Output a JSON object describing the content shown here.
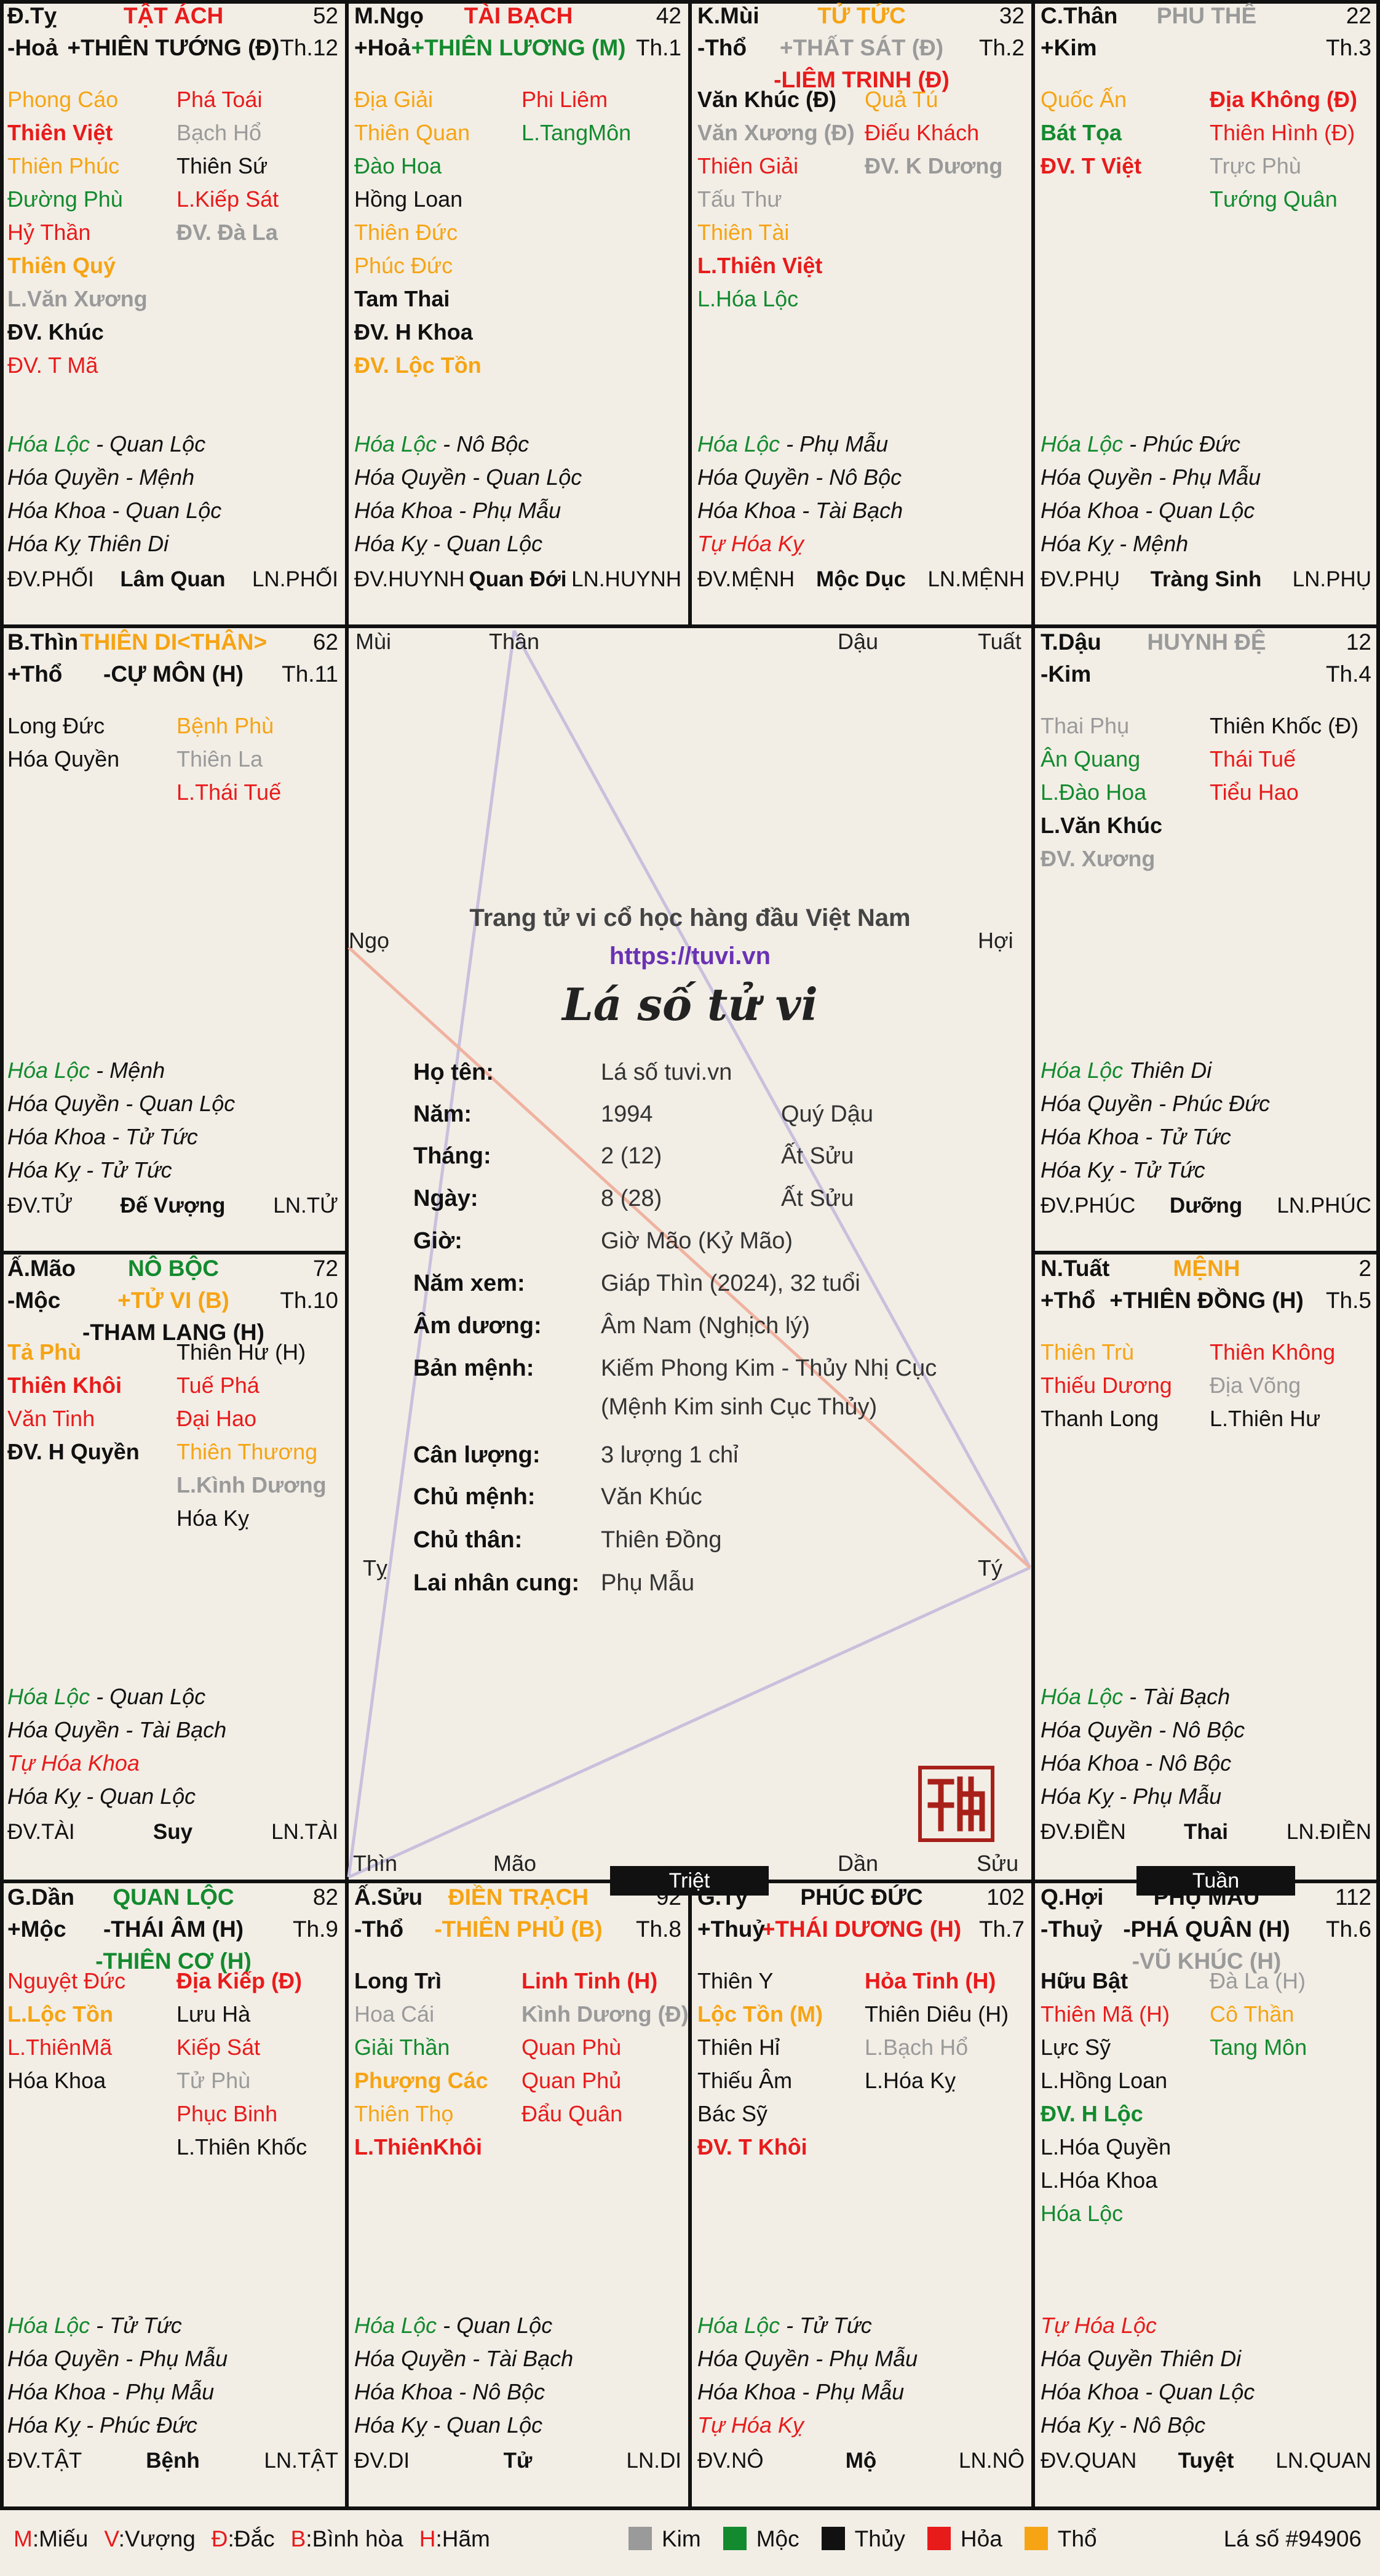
{
  "colors": {
    "moc": "#138a2e",
    "hoa": "#e81b1b",
    "tho": "#f6a414",
    "kim": "#9a9a9a",
    "thuy": "#111111",
    "purple": "#6a32b4"
  },
  "palaces": [
    {
      "id": "dty",
      "hdr": {
        "tl": "Đ.Tỵ",
        "tc": "TẬT ÁCH",
        "tc_c": "hoa",
        "tr": "52",
        "bl": "-Hoả",
        "bc": "+THIÊN TƯỚNG (Đ)",
        "bc_c": "thuy",
        "br": "Th.12"
      },
      "left": [
        [
          "Phong Cáo",
          "tho",
          0
        ],
        [
          "Thiên Việt",
          "hoa",
          1
        ],
        [
          "Thiên Phúc",
          "tho",
          0
        ],
        [
          "Đường Phù",
          "moc",
          0
        ],
        [
          "Hỷ Thần",
          "hoa",
          0
        ],
        [
          "Thiên Quý",
          "tho",
          1
        ],
        [
          "L.Văn Xương",
          "kim",
          1
        ],
        [
          "ĐV. Khúc",
          "thuy",
          1
        ],
        [
          "ĐV. T Mã",
          "hoa",
          0
        ]
      ],
      "right": [
        [
          "Phá Toái",
          "hoa",
          0
        ],
        [
          "Bạch Hổ",
          "kim",
          0
        ],
        [
          "Thiên Sứ",
          "thuy",
          0
        ],
        [
          "L.Kiếp Sát",
          "hoa",
          0
        ],
        [
          "ĐV. Đà La",
          "kim",
          1
        ]
      ],
      "hoa": [
        [
          "Hóa Lộc",
          "moc",
          " - Quan Lộc"
        ],
        [
          "Hóa Quyền",
          "thuy",
          " - Mệnh"
        ],
        [
          "Hóa Khoa",
          "thuy",
          " - Quan Lộc"
        ],
        [
          "Hóa Kỵ",
          "thuy",
          "  Thiên Di"
        ]
      ],
      "foot": {
        "l": "ĐV.PHỐI",
        "c": "Lâm Quan",
        "r": "LN.PHỐI"
      }
    },
    {
      "id": "mngo",
      "hdr": {
        "tl": "M.Ngọ",
        "tc": "TÀI BẠCH",
        "tc_c": "hoa",
        "tr": "42",
        "bl": "+Hoả",
        "bc": "+THIÊN LƯƠNG (M)",
        "bc_c": "moc",
        "br": "Th.1"
      },
      "left": [
        [
          "Địa Giải",
          "tho",
          0
        ],
        [
          "Thiên Quan",
          "tho",
          0
        ],
        [
          "Đào Hoa",
          "moc",
          0
        ],
        [
          "Hồng Loan",
          "thuy",
          0
        ],
        [
          "Thiên Đức",
          "tho",
          0
        ],
        [
          "Phúc Đức",
          "tho",
          0
        ],
        [
          "Tam Thai",
          "thuy",
          1
        ],
        [
          "ĐV. H Khoa",
          "thuy",
          1
        ],
        [
          "ĐV. Lộc Tồn",
          "tho",
          1
        ]
      ],
      "right": [
        [
          "Phi Liêm",
          "hoa",
          0
        ],
        [
          "L.TangMôn",
          "moc",
          0
        ]
      ],
      "hoa": [
        [
          "Hóa Lộc",
          "moc",
          " - Nô Bộc"
        ],
        [
          "Hóa Quyền",
          "thuy",
          " - Quan Lộc"
        ],
        [
          "Hóa Khoa",
          "thuy",
          " - Phụ Mẫu"
        ],
        [
          "Hóa Kỵ",
          "thuy",
          " - Quan Lộc"
        ]
      ],
      "foot": {
        "l": "ĐV.HUYNH",
        "c": "Quan Đới",
        "r": "LN.HUYNH"
      }
    },
    {
      "id": "kmui",
      "hdr": {
        "tl": "K.Mùi",
        "tc": "TỬ TỨC",
        "tc_c": "tho",
        "tr": "32",
        "bl": "-Thổ",
        "bc": "+THẤT SÁT (Đ)",
        "bc_c": "kim",
        "br": "Th.2",
        "c3": "-LIÊM TRINH (Đ)",
        "c3_c": "hoa"
      },
      "left": [
        [
          "Văn Khúc (Đ)",
          "thuy",
          1
        ],
        [
          "Văn Xương (Đ)",
          "kim",
          1
        ],
        [
          "Thiên Giải",
          "hoa",
          0
        ],
        [
          "Tấu Thư",
          "kim",
          0
        ],
        [
          "Thiên Tài",
          "tho",
          0
        ],
        [
          "L.Thiên Việt",
          "hoa",
          1
        ],
        [
          "L.Hóa Lộc",
          "moc",
          0
        ]
      ],
      "right": [
        [
          "Quả Tú",
          "tho",
          0
        ],
        [
          "Điếu Khách",
          "hoa",
          0
        ],
        [
          "ĐV. K Dương",
          "kim",
          1
        ]
      ],
      "hoa": [
        [
          "Hóa Lộc",
          "moc",
          " - Phụ Mẫu"
        ],
        [
          "Hóa Quyền",
          "thuy",
          " - Nô Bộc"
        ],
        [
          "Hóa Khoa",
          "thuy",
          " - Tài Bạch"
        ],
        [
          "Tự Hóa Kỵ",
          "hoa",
          ""
        ]
      ],
      "foot": {
        "l": "ĐV.MỆNH",
        "c": "Mộc Dục",
        "r": "LN.MỆNH"
      }
    },
    {
      "id": "cthan",
      "hdr": {
        "tl": "C.Thân",
        "tc": "PHU THÊ",
        "tc_c": "kim",
        "tr": "22",
        "bl": "+Kim",
        "bc": "",
        "bc_c": "thuy",
        "br": "Th.3"
      },
      "left": [
        [
          "Quốc Ấn",
          "tho",
          0
        ],
        [
          "Bát Tọa",
          "moc",
          1
        ],
        [
          "ĐV. T Việt",
          "hoa",
          1
        ]
      ],
      "right": [
        [
          "Địa Không (Đ)",
          "hoa",
          1
        ],
        [
          "Thiên Hình (Đ)",
          "hoa",
          0
        ],
        [
          "Trực Phù",
          "kim",
          0
        ],
        [
          "Tướng Quân",
          "moc",
          0
        ]
      ],
      "hoa": [
        [
          "Hóa Lộc",
          "moc",
          " - Phúc Đức"
        ],
        [
          "Hóa Quyền",
          "thuy",
          " - Phụ Mẫu"
        ],
        [
          "Hóa Khoa",
          "thuy",
          " - Quan Lộc"
        ],
        [
          "Hóa Kỵ",
          "thuy",
          " - Mệnh"
        ]
      ],
      "foot": {
        "l": "ĐV.PHỤ",
        "c": "Tràng Sinh",
        "r": "LN.PHỤ"
      }
    },
    {
      "id": "bthin",
      "hdr": {
        "tl": "B.Thìn",
        "tc": "THIÊN DI<THÂN>",
        "tc_c": "tho",
        "tr": "62",
        "bl": "+Thổ",
        "bc": "-CỰ MÔN (H)",
        "bc_c": "thuy",
        "br": "Th.11"
      },
      "left": [
        [
          "Long Đức",
          "thuy",
          0
        ],
        [
          "Hóa Quyền",
          "thuy",
          0
        ]
      ],
      "right": [
        [
          "Bệnh Phù",
          "tho",
          0
        ],
        [
          "Thiên La",
          "kim",
          0
        ],
        [
          "L.Thái Tuế",
          "hoa",
          0
        ]
      ],
      "hoa": [
        [
          "Hóa Lộc",
          "moc",
          " - Mệnh"
        ],
        [
          "Hóa Quyền",
          "thuy",
          " - Quan Lộc"
        ],
        [
          "Hóa Khoa",
          "thuy",
          " - Tử Tức"
        ],
        [
          "Hóa Kỵ",
          "thuy",
          " - Tử Tức"
        ]
      ],
      "foot": {
        "l": "ĐV.TỬ",
        "c": "Đế Vượng",
        "r": "LN.TỬ"
      }
    },
    {
      "id": "tdau",
      "hdr": {
        "tl": "T.Dậu",
        "tc": "HUYNH ĐỆ",
        "tc_c": "kim",
        "tr": "12",
        "bl": "-Kim",
        "bc": "",
        "bc_c": "thuy",
        "br": "Th.4"
      },
      "left": [
        [
          "Thai Phụ",
          "kim",
          0
        ],
        [
          "Ân Quang",
          "moc",
          0
        ],
        [
          "L.Đào Hoa",
          "moc",
          0
        ],
        [
          "L.Văn Khúc",
          "thuy",
          1
        ],
        [
          "ĐV. Xương",
          "kim",
          1
        ]
      ],
      "right": [
        [
          "Thiên Khốc (Đ)",
          "thuy",
          0
        ],
        [
          "Thái Tuế",
          "hoa",
          0
        ],
        [
          "Tiểu Hao",
          "hoa",
          0
        ]
      ],
      "hoa": [
        [
          "Hóa Lộc",
          "moc",
          "  Thiên Di"
        ],
        [
          "Hóa Quyền",
          "thuy",
          " - Phúc Đức"
        ],
        [
          "Hóa Khoa",
          "thuy",
          " - Tử Tức"
        ],
        [
          "Hóa Kỵ",
          "thuy",
          " - Tử Tức"
        ]
      ],
      "foot": {
        "l": "ĐV.PHÚC",
        "c": "Dưỡng",
        "r": "LN.PHÚC"
      }
    },
    {
      "id": "amao",
      "hdr": {
        "tl": "Ấ.Mão",
        "tc": "NÔ BỘC",
        "tc_c": "moc",
        "tr": "72",
        "bl": "-Mộc",
        "bc": "+TỬ VI (B)",
        "bc_c": "tho",
        "br": "Th.10",
        "c3": "-THAM LANG (H)",
        "c3_c": "thuy"
      },
      "left": [
        [
          "Tả Phù",
          "tho",
          1
        ],
        [
          "Thiên Khôi",
          "hoa",
          1
        ],
        [
          "Văn Tinh",
          "hoa",
          0
        ],
        [
          "ĐV. H Quyền",
          "thuy",
          1
        ]
      ],
      "right": [
        [
          "Thiên Hư (H)",
          "thuy",
          0
        ],
        [
          "Tuế Phá",
          "hoa",
          0
        ],
        [
          "Đại Hao",
          "hoa",
          0
        ],
        [
          "Thiên Thương",
          "tho",
          0
        ],
        [
          "L.Kình Dương",
          "kim",
          1
        ],
        [
          "Hóa Kỵ",
          "thuy",
          0
        ]
      ],
      "hoa": [
        [
          "Hóa Lộc",
          "moc",
          " - Quan Lộc"
        ],
        [
          "Hóa Quyền",
          "thuy",
          " - Tài Bạch"
        ],
        [
          "Tự Hóa Khoa",
          "hoa",
          ""
        ],
        [
          "Hóa Kỵ",
          "thuy",
          " - Quan Lộc"
        ]
      ],
      "foot": {
        "l": "ĐV.TÀI",
        "c": "Suy",
        "r": "LN.TÀI"
      }
    },
    {
      "id": "ntuat",
      "hdr": {
        "tl": "N.Tuất",
        "tc": "MỆNH",
        "tc_c": "tho",
        "tr": "2",
        "bl": "+Thổ",
        "bc": "+THIÊN ĐỒNG (H)",
        "bc_c": "thuy",
        "br": "Th.5"
      },
      "left": [
        [
          "Thiên Trù",
          "tho",
          0
        ],
        [
          "Thiếu Dương",
          "hoa",
          0
        ],
        [
          "Thanh Long",
          "thuy",
          0
        ]
      ],
      "right": [
        [
          "Thiên Không",
          "hoa",
          0
        ],
        [
          "Địa Võng",
          "kim",
          0
        ],
        [
          "L.Thiên Hư",
          "thuy",
          0
        ]
      ],
      "hoa": [
        [
          "Hóa Lộc",
          "moc",
          " - Tài Bạch"
        ],
        [
          "Hóa Quyền",
          "thuy",
          " - Nô Bộc"
        ],
        [
          "Hóa Khoa",
          "thuy",
          " - Nô Bộc"
        ],
        [
          "Hóa Kỵ",
          "thuy",
          " - Phụ Mẫu"
        ]
      ],
      "foot": {
        "l": "ĐV.ĐIỀN",
        "c": "Thai",
        "r": "LN.ĐIỀN"
      }
    },
    {
      "id": "gdan",
      "hdr": {
        "tl": "G.Dần",
        "tc": "QUAN LỘC",
        "tc_c": "moc",
        "tr": "82",
        "bl": "+Mộc",
        "bc": "-THÁI ÂM (H)",
        "bc_c": "thuy",
        "br": "Th.9",
        "c3": "-THIÊN CƠ (H)",
        "c3_c": "moc"
      },
      "left": [
        [
          "Nguyệt Đức",
          "hoa",
          0
        ],
        [
          "L.Lộc Tồn",
          "tho",
          1
        ],
        [
          "L.ThiênMã",
          "hoa",
          0
        ],
        [
          "Hóa Khoa",
          "thuy",
          0
        ]
      ],
      "right": [
        [
          "Địa Kiếp (Đ)",
          "hoa",
          1
        ],
        [
          "Lưu Hà",
          "thuy",
          0
        ],
        [
          "Kiếp Sát",
          "hoa",
          0
        ],
        [
          "Tử Phù",
          "kim",
          0
        ],
        [
          "Phục Binh",
          "hoa",
          0
        ],
        [
          "L.Thiên Khốc",
          "thuy",
          0
        ]
      ],
      "hoa": [
        [
          "Hóa Lộc",
          "moc",
          " - Tử Tức"
        ],
        [
          "Hóa Quyền",
          "thuy",
          " - Phụ Mẫu"
        ],
        [
          "Hóa Khoa",
          "thuy",
          " - Phụ Mẫu"
        ],
        [
          "Hóa Kỵ",
          "thuy",
          " - Phúc Đức"
        ]
      ],
      "foot": {
        "l": "ĐV.TẬT",
        "c": "Bệnh",
        "r": "LN.TẬT"
      }
    },
    {
      "id": "asuu",
      "hdr": {
        "tl": "Ấ.Sửu",
        "tc": "ĐIỀN TRẠCH",
        "tc_c": "tho",
        "tr": "92",
        "bl": "-Thổ",
        "bc": "-THIÊN PHỦ (B)",
        "bc_c": "tho",
        "br": "Th.8"
      },
      "left": [
        [
          "Long Trì",
          "thuy",
          1
        ],
        [
          "Hoa Cái",
          "kim",
          0
        ],
        [
          "Giải Thần",
          "moc",
          0
        ],
        [
          "Phượng Các",
          "tho",
          1
        ],
        [
          "Thiên Thọ",
          "tho",
          0
        ],
        [
          "L.ThiênKhôi",
          "hoa",
          1
        ]
      ],
      "right": [
        [
          "Linh Tinh (H)",
          "hoa",
          1
        ],
        [
          "Kình Dương (Đ)",
          "kim",
          1
        ],
        [
          "Quan Phù",
          "hoa",
          0
        ],
        [
          "Quan Phủ",
          "hoa",
          0
        ],
        [
          "Đẩu Quân",
          "hoa",
          0
        ]
      ],
      "hoa": [
        [
          "Hóa Lộc",
          "moc",
          " - Quan Lộc"
        ],
        [
          "Hóa Quyền",
          "thuy",
          " - Tài Bạch"
        ],
        [
          "Hóa Khoa",
          "thuy",
          " - Nô Bộc"
        ],
        [
          "Hóa Kỵ",
          "thuy",
          " - Quan Lộc"
        ]
      ],
      "foot": {
        "l": "ĐV.DI",
        "c": "Tử",
        "r": "LN.DI"
      }
    },
    {
      "id": "gty",
      "hdr": {
        "tl": "G.Tý",
        "tc": "PHÚC ĐỨC",
        "tc_c": "thuy",
        "tr": "102",
        "bl": "+Thuỷ",
        "bc": "+THÁI DƯƠNG (H)",
        "bc_c": "hoa",
        "br": "Th.7"
      },
      "left": [
        [
          "Thiên Y",
          "thuy",
          0
        ],
        [
          "Lộc Tồn (M)",
          "tho",
          1
        ],
        [
          "Thiên Hỉ",
          "thuy",
          0
        ],
        [
          "Thiếu Âm",
          "thuy",
          0
        ],
        [
          "Bác Sỹ",
          "thuy",
          0
        ],
        [
          "ĐV. T Khôi",
          "hoa",
          1
        ]
      ],
      "right": [
        [
          "Hỏa Tinh (H)",
          "hoa",
          1
        ],
        [
          "Thiên Diêu (H)",
          "thuy",
          0
        ],
        [
          "L.Bạch Hổ",
          "kim",
          0
        ],
        [
          "L.Hóa Kỵ",
          "thuy",
          0
        ]
      ],
      "hoa": [
        [
          "Hóa Lộc",
          "moc",
          " - Tử Tức"
        ],
        [
          "Hóa Quyền",
          "thuy",
          " - Phụ Mẫu"
        ],
        [
          "Hóa Khoa",
          "thuy",
          " - Phụ Mẫu"
        ],
        [
          "Tự Hóa Kỵ",
          "hoa",
          ""
        ]
      ],
      "foot": {
        "l": "ĐV.NÔ",
        "c": "Mộ",
        "r": "LN.NÔ"
      }
    },
    {
      "id": "qhoi",
      "hdr": {
        "tl": "Q.Hợi",
        "tc": "PHỤ MẪU",
        "tc_c": "thuy",
        "tr": "112",
        "bl": "-Thuỷ",
        "bc": "-PHÁ QUÂN (H)",
        "bc_c": "thuy",
        "br": "Th.6",
        "c3": "-VŨ KHÚC (H)",
        "c3_c": "kim"
      },
      "left": [
        [
          "Hữu Bật",
          "thuy",
          1
        ],
        [
          "Thiên Mã (H)",
          "hoa",
          0
        ],
        [
          "Lực Sỹ",
          "thuy",
          0
        ],
        [
          "L.Hồng Loan",
          "thuy",
          0
        ],
        [
          "ĐV. H Lộc",
          "moc",
          1
        ],
        [
          "L.Hóa Quyền",
          "thuy",
          0
        ],
        [
          "L.Hóa Khoa",
          "thuy",
          0
        ],
        [
          "Hóa Lộc",
          "moc",
          0
        ]
      ],
      "right": [
        [
          "Đà La (H)",
          "kim",
          0
        ],
        [
          "Cô Thần",
          "tho",
          0
        ],
        [
          "Tang Môn",
          "moc",
          0
        ]
      ],
      "hoa": [
        [
          "Tự Hóa Lộc",
          "hoa",
          ""
        ],
        [
          "Hóa Quyền",
          "thuy",
          "  Thiên Di"
        ],
        [
          "Hóa Khoa",
          "thuy",
          " - Quan Lộc"
        ],
        [
          "Hóa Kỵ",
          "thuy",
          " - Nô Bộc"
        ]
      ],
      "foot": {
        "l": "ĐV.QUAN",
        "c": "Tuyệt",
        "r": "LN.QUAN"
      }
    }
  ],
  "corners": {
    "mui": "Mùi",
    "than": "Thân",
    "dau": "Dậu",
    "tuat": "Tuất",
    "ngo": "Ngọ",
    "hoi": "Hợi",
    "ty": "Tỵ",
    "ty2": "Tý",
    "thin": "Thìn",
    "mao": "Mão",
    "dan": "Dần",
    "suu": "Sửu"
  },
  "center": {
    "tagline": "Trang tử vi cổ học hàng đầu Việt Nam",
    "url": "https://tuvi.vn",
    "title": "Lá số tử vi",
    "rows": [
      {
        "k": "Họ tên:",
        "v": "Lá số tuvi.vn",
        "v2": ""
      },
      {
        "k": "Năm:",
        "v": "1994",
        "v2": "Quý Dậu"
      },
      {
        "k": "Tháng:",
        "v": "2 (12)",
        "v2": "Ất Sửu"
      },
      {
        "k": "Ngày:",
        "v": "8 (28)",
        "v2": "Ất Sửu"
      },
      {
        "k": "Giờ:",
        "v": "Giờ Mão (Kỷ Mão)",
        "v2": ""
      },
      {
        "k": "Năm xem:",
        "v": "Giáp Thìn (2024), 32 tuổi",
        "v2": ""
      },
      {
        "k": "Âm dương:",
        "v": "Âm Nam (Nghịch lý)",
        "v2": ""
      },
      {
        "k": "Bản mệnh:",
        "v": "Kiếm Phong Kim - Thủy Nhị Cục",
        "v2": ""
      },
      {
        "k": "",
        "v": "(Mệnh Kim sinh Cục Thủy)",
        "v2": ""
      },
      {
        "k": "Cân lượng:",
        "v": "3 lượng 1 chỉ",
        "v2": ""
      },
      {
        "k": "Chủ mệnh:",
        "v": "Văn Khúc",
        "v2": ""
      },
      {
        "k": "Chủ thân:",
        "v": "Thiên Đồng",
        "v2": ""
      },
      {
        "k": "Lai nhân cung:",
        "v": "Phụ Mẫu",
        "v2": ""
      }
    ],
    "seal": "tuvi-seal"
  },
  "tags": {
    "triet": "Triệt",
    "tuan": "Tuần"
  },
  "legend": {
    "brightness": [
      [
        "M",
        "Miếu"
      ],
      [
        "V",
        "Vượng"
      ],
      [
        "Đ",
        "Đắc"
      ],
      [
        "B",
        "Bình hòa"
      ],
      [
        "H",
        "Hãm"
      ]
    ],
    "elements": [
      [
        "Kim",
        "kim"
      ],
      [
        "Mộc",
        "moc"
      ],
      [
        "Thủy",
        "thuy"
      ],
      [
        "Hỏa",
        "hoa"
      ],
      [
        "Thổ",
        "tho"
      ]
    ],
    "id": "Lá số #94906"
  }
}
